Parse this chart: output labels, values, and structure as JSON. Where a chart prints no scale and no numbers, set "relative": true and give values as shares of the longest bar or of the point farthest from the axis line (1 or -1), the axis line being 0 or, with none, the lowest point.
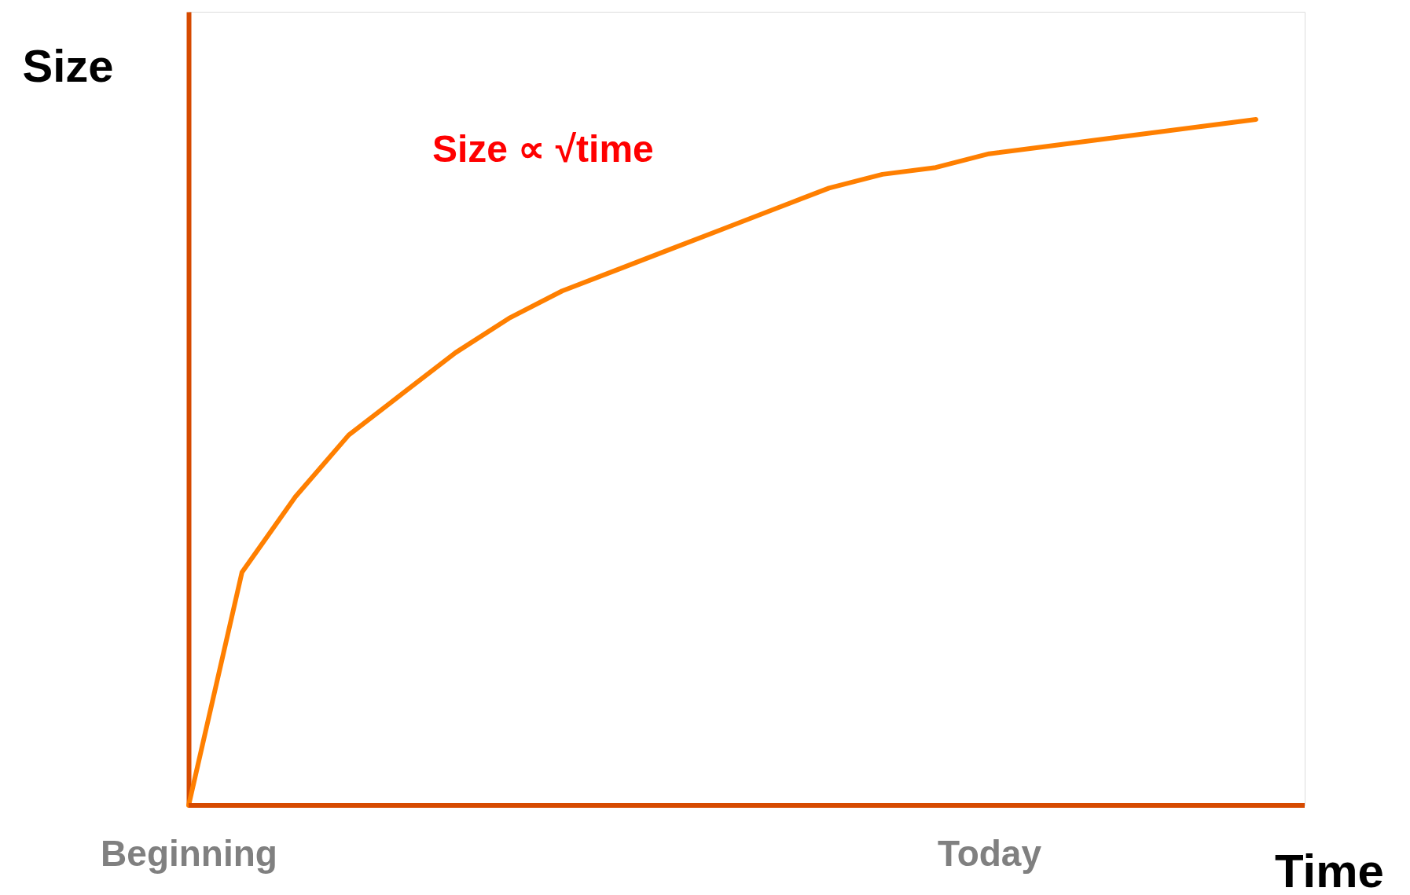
{
  "chart_data": {
    "type": "line",
    "relative": true,
    "xlabel": "Time",
    "ylabel": "Size",
    "annotations": [
      "Size ∝ √time"
    ],
    "categories": [
      "Beginning",
      null,
      null,
      null,
      null,
      null,
      null,
      null,
      null,
      null,
      null,
      null,
      null,
      null,
      null,
      "Today",
      null,
      null,
      null,
      null,
      null
    ],
    "grid": false,
    "marker": "none",
    "line_style": "solid",
    "series": [
      {
        "color": "#ff7f00",
        "values": [
          0,
          0.34,
          0.45,
          0.54,
          0.6,
          0.66,
          0.71,
          0.75,
          0.78,
          0.81,
          0.84,
          0.87,
          0.9,
          0.92,
          0.93,
          0.95,
          0.96,
          0.97,
          0.98,
          0.99,
          1.0
        ]
      }
    ]
  }
}
